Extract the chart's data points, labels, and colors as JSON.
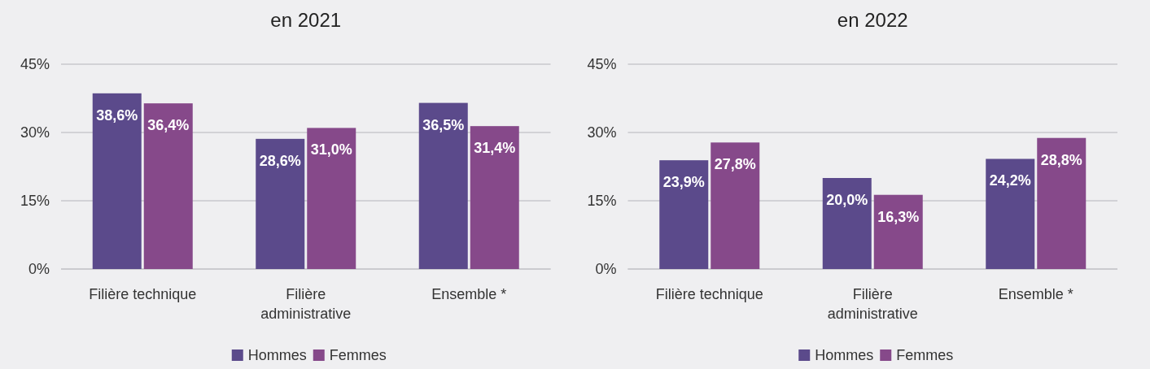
{
  "chart_data": [
    {
      "type": "bar",
      "title": "en 2021",
      "categories": [
        "Filière technique",
        "Filière administrative",
        "Ensemble *"
      ],
      "series": [
        {
          "name": "Hommes",
          "color": "#5b4a8b",
          "values": [
            38.6,
            28.6,
            36.5
          ],
          "value_labels": [
            "38,6%",
            "28,6%",
            "36,5%"
          ]
        },
        {
          "name": "Femmes",
          "color": "#86498a",
          "values": [
            36.4,
            31.0,
            31.4
          ],
          "value_labels": [
            "36,4%",
            "31,0%",
            "31,4%"
          ]
        }
      ],
      "ylim": [
        0,
        45
      ],
      "yticks": [
        {
          "value": 0,
          "label": "0%"
        },
        {
          "value": 15,
          "label": "15%"
        },
        {
          "value": 30,
          "label": "30%"
        },
        {
          "value": 45,
          "label": "45%"
        }
      ],
      "grid": "y",
      "legend": "bottom"
    },
    {
      "type": "bar",
      "title": "en 2022",
      "categories": [
        "Filière technique",
        "Filière administrative",
        "Ensemble *"
      ],
      "series": [
        {
          "name": "Hommes",
          "color": "#5b4a8b",
          "values": [
            23.9,
            20.0,
            24.2
          ],
          "value_labels": [
            "23,9%",
            "20,0%",
            "24,2%"
          ]
        },
        {
          "name": "Femmes",
          "color": "#86498a",
          "values": [
            27.8,
            16.3,
            28.8
          ],
          "value_labels": [
            "27,8%",
            "16,3%",
            "28,8%"
          ]
        }
      ],
      "ylim": [
        0,
        45
      ],
      "yticks": [
        {
          "value": 0,
          "label": "0%"
        },
        {
          "value": 15,
          "label": "15%"
        },
        {
          "value": 30,
          "label": "30%"
        },
        {
          "value": 45,
          "label": "45%"
        }
      ],
      "grid": "y",
      "legend": "bottom"
    }
  ]
}
